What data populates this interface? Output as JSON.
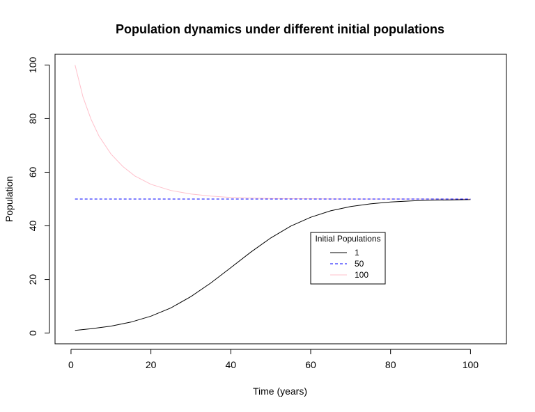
{
  "chart_data": {
    "type": "line",
    "title": "Population dynamics under different initial populations",
    "xlabel": "Time (years)",
    "ylabel": "Population",
    "xlim": [
      -4,
      109
    ],
    "ylim": [
      -4,
      104
    ],
    "xticks": [
      0,
      20,
      40,
      60,
      80,
      100
    ],
    "yticks": [
      0,
      20,
      40,
      60,
      80,
      100
    ],
    "grid": false,
    "legend": {
      "title": "Initial Populations",
      "placement": "center-right",
      "entries": [
        "1",
        "50",
        "100"
      ]
    },
    "series": [
      {
        "name": "1",
        "color": "#000000",
        "dash": "solid",
        "x": [
          1,
          5,
          10,
          15,
          20,
          25,
          30,
          35,
          40,
          45,
          50,
          55,
          60,
          65,
          70,
          75,
          80,
          85,
          90,
          95,
          100
        ],
        "y": [
          1.0,
          1.6,
          2.6,
          4.1,
          6.3,
          9.4,
          13.6,
          18.7,
          24.4,
          30.2,
          35.5,
          39.9,
          43.2,
          45.6,
          47.2,
          48.2,
          48.9,
          49.3,
          49.6,
          49.7,
          49.8
        ]
      },
      {
        "name": "50",
        "color": "#0000ff",
        "dash": "dashed",
        "x": [
          1,
          10,
          20,
          30,
          40,
          50,
          60,
          70,
          80,
          90,
          100
        ],
        "y": [
          50,
          50,
          50,
          50,
          50,
          50,
          50,
          50,
          50,
          50,
          50
        ]
      },
      {
        "name": "100",
        "color": "#ffc0cb",
        "dash": "solid",
        "x": [
          1,
          3,
          5,
          7,
          10,
          13,
          16,
          20,
          25,
          30,
          35,
          40,
          50,
          60,
          70,
          80,
          90,
          100
        ],
        "y": [
          100,
          88.1,
          79.8,
          73.5,
          66.8,
          62.1,
          58.6,
          55.5,
          53.2,
          51.9,
          51.1,
          50.6,
          50.2,
          50.1,
          50.0,
          50.0,
          50.0,
          50.0
        ]
      }
    ]
  }
}
